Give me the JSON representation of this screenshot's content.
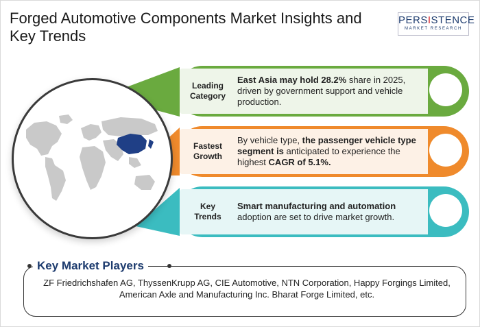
{
  "title": "Forged Automotive Components Market Insights and Key Trends",
  "logo": {
    "main_a": "PERS",
    "main_i": "I",
    "main_b": "STENCE",
    "sub": "MARKET RESEARCH"
  },
  "cards": [
    {
      "label_line1": "Leading",
      "label_line2": "Category",
      "text_bold": "East Asia may hold 28.2%",
      "text_rest": " share in 2025, driven by government support and vehicle production.",
      "color": "#6aaa3f"
    },
    {
      "label_line1": "Fastest",
      "label_line2": "Growth",
      "text_pre": "By vehicle type, ",
      "text_bold": "the passenger vehicle type segment is",
      "text_mid": " anticipated to experience the highest ",
      "text_bold2": "CAGR of 5.1%.",
      "color": "#ef8a2c"
    },
    {
      "label_line1": "Key",
      "label_line2": "Trends",
      "text_bold": "Smart manufacturing and automation",
      "text_rest": " adoption are set to drive market growth.",
      "color": "#3bbcc0"
    }
  ],
  "players": {
    "heading": "Key Market Players",
    "text": "ZF Friedrichshafen AG, ThyssenKrupp AG, CIE Automotive, NTN Corporation, Happy Forgings Limited, American Axle and Manufacturing Inc. Bharat Forge Limited, etc."
  },
  "colors": {
    "highlight_region": "#1f3f86",
    "map_gray": "#c9c9c9",
    "brand": "#1d3b6e",
    "accent_red": "#d61f26"
  }
}
